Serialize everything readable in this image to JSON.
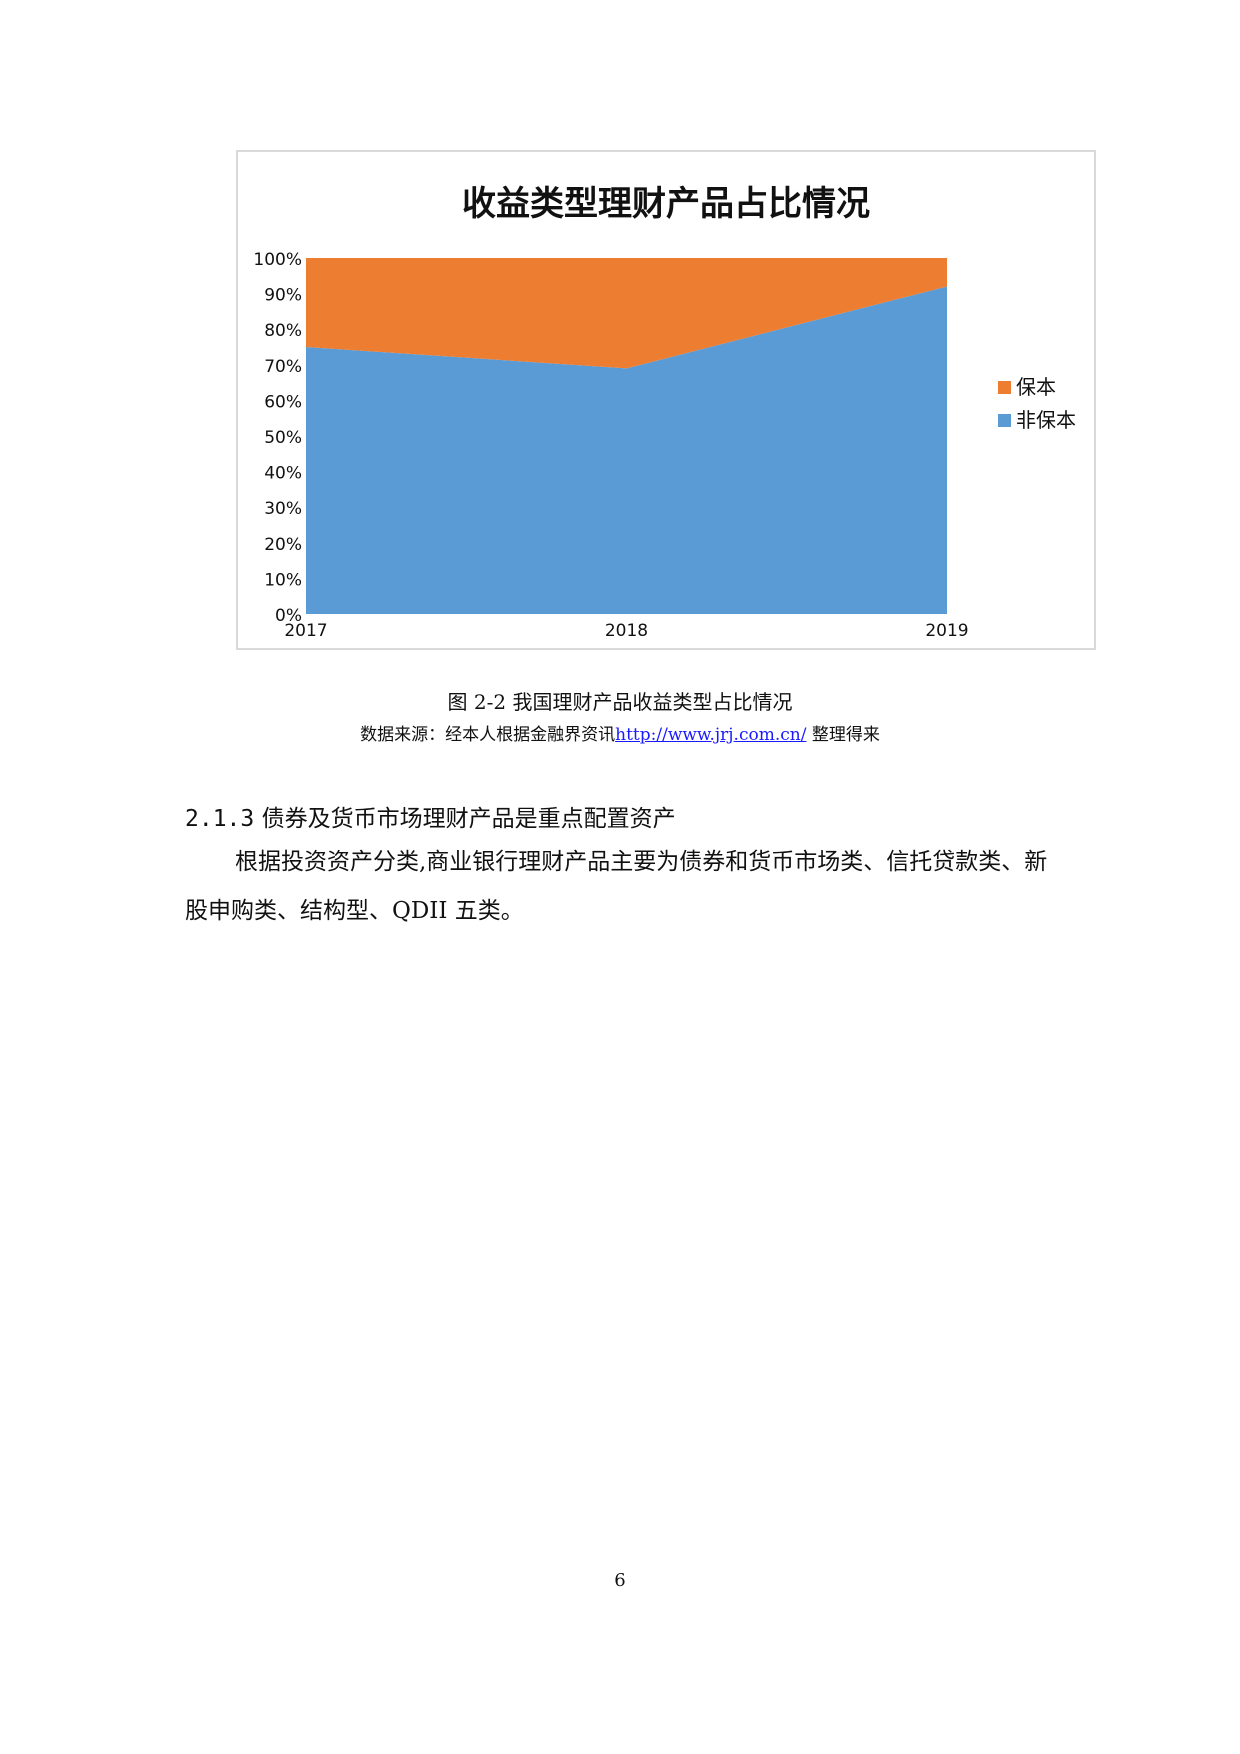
{
  "chart_data": {
    "type": "area",
    "stacked": true,
    "normalized_percent": true,
    "title": "收益类型理财产品占比情况",
    "categories": [
      "2017",
      "2018",
      "2019"
    ],
    "series": [
      {
        "name": "非保本",
        "values": [
          75,
          69,
          92
        ],
        "color": "#5b9bd5"
      },
      {
        "name": "保本",
        "values": [
          25,
          31,
          8
        ],
        "color": "#ed7d31"
      }
    ],
    "y_ticks": [
      "0%",
      "10%",
      "20%",
      "30%",
      "40%",
      "50%",
      "60%",
      "70%",
      "80%",
      "90%",
      "100%"
    ],
    "ylim": [
      0,
      100
    ],
    "legend_position": "right",
    "legend_order": [
      "保本",
      "非保本"
    ],
    "grid": false
  },
  "figure": {
    "caption": "图 2-2  我国理财产品收益类型占比情况",
    "source_prefix": "数据来源：经本人根据金融界资讯",
    "source_link": "http://www.jrj.com.cn/",
    "source_suffix": " 整理得来"
  },
  "section": {
    "number": "2.1.3",
    "title": "债券及货币市场理财产品是重点配置资产"
  },
  "paragraph": "根据投资资产分类,商业银行理财产品主要为债券和货币市场类、信托贷款类、新股申购类、结构型、QDII 五类。",
  "page_number": "6"
}
